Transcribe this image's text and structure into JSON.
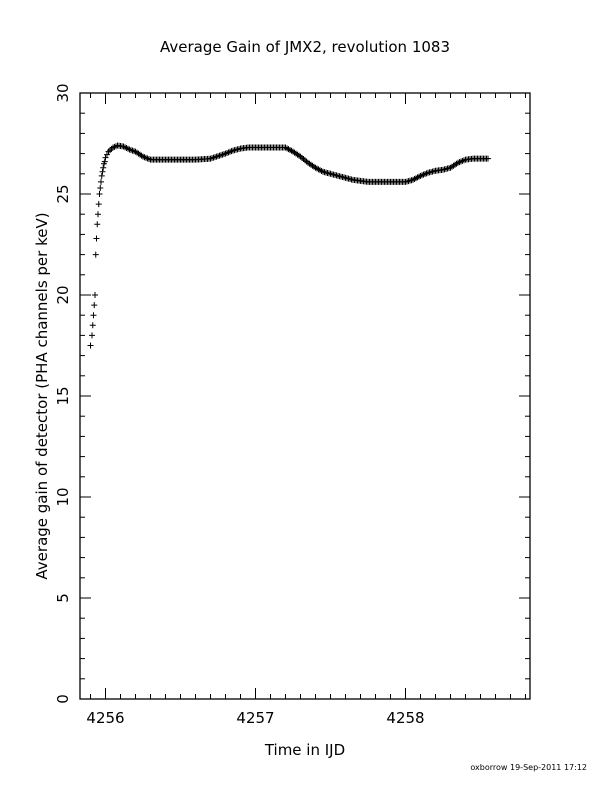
{
  "chart_data": {
    "type": "scatter",
    "title": "Average Gain of JMX2, revolution 1083",
    "xlabel": "Time in IJD",
    "ylabel": "Average gain of detector (PHA channels per keV)",
    "xlim": [
      4255.83,
      4258.83
    ],
    "ylim": [
      0,
      30
    ],
    "xticks": [
      4256,
      4257,
      4258
    ],
    "yticks": [
      0,
      5,
      10,
      15,
      20,
      25,
      30
    ],
    "marker": "+",
    "color": "#000000",
    "grid": false,
    "legend": "none",
    "series": [
      {
        "x": [
          4255.9,
          4255.91,
          4255.915,
          4255.92,
          4255.925,
          4255.93,
          4255.935,
          4255.94,
          4255.945,
          4255.95,
          4255.955,
          4255.96,
          4255.965,
          4255.97,
          4255.975,
          4255.98,
          4255.985,
          4255.99,
          4255.995,
          4256.0,
          4256.02,
          4256.05,
          4256.08,
          4256.12,
          4256.16,
          4256.2,
          4256.25,
          4256.3,
          4256.35,
          4256.4,
          4256.5,
          4256.6,
          4256.7,
          4256.8,
          4256.85,
          4256.9,
          4256.95,
          4257.0,
          4257.1,
          4257.2,
          4257.25,
          4257.3,
          4257.35,
          4257.4,
          4257.45,
          4257.5,
          4257.55,
          4257.6,
          4257.65,
          4257.7,
          4257.75,
          4257.8,
          4257.9,
          4258.0,
          4258.05,
          4258.1,
          4258.15,
          4258.2,
          4258.25,
          4258.3,
          4258.35,
          4258.4,
          4258.45,
          4258.5,
          4258.55
        ],
        "y": [
          17.5,
          18.0,
          18.5,
          19.0,
          19.5,
          20.0,
          22.0,
          22.8,
          23.5,
          24.0,
          24.5,
          25.0,
          25.3,
          25.6,
          25.9,
          26.1,
          26.3,
          26.5,
          26.6,
          26.8,
          27.1,
          27.3,
          27.4,
          27.35,
          27.2,
          27.1,
          26.85,
          26.7,
          26.7,
          26.7,
          26.7,
          26.7,
          26.75,
          27.0,
          27.15,
          27.25,
          27.3,
          27.3,
          27.3,
          27.3,
          27.1,
          26.85,
          26.55,
          26.3,
          26.1,
          26.0,
          25.9,
          25.8,
          25.7,
          25.65,
          25.6,
          25.6,
          25.6,
          25.6,
          25.7,
          25.9,
          26.05,
          26.15,
          26.2,
          26.3,
          26.55,
          26.7,
          26.75,
          26.75,
          26.75
        ]
      }
    ]
  },
  "footer": "oxborrow 19-Sep-2011 17:12"
}
